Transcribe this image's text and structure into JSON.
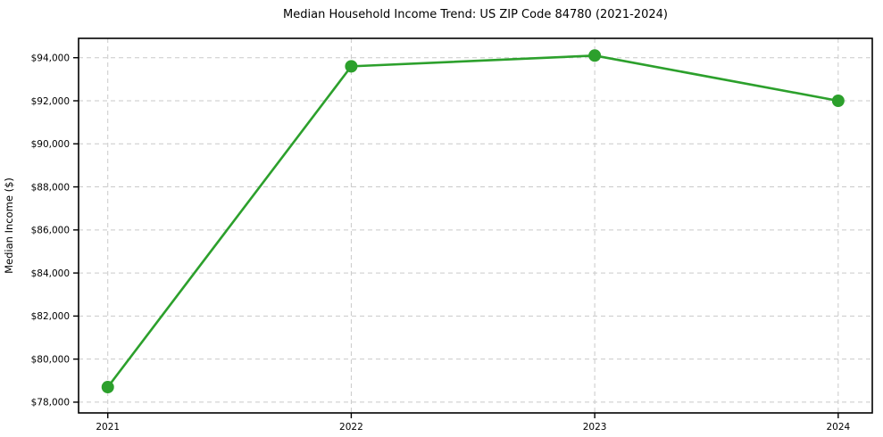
{
  "chart_data": {
    "type": "line",
    "title": "Median Household Income Trend: US ZIP Code 84780 (2021-2024)",
    "xlabel": "",
    "ylabel": "Median Income ($)",
    "x": [
      2021,
      2022,
      2023,
      2024
    ],
    "y": [
      78700,
      93600,
      94100,
      92000
    ],
    "xticks": [
      2021,
      2022,
      2023,
      2024
    ],
    "xtick_labels": [
      "2021",
      "2022",
      "2023",
      "2024"
    ],
    "yticks": [
      78000,
      80000,
      82000,
      84000,
      86000,
      88000,
      90000,
      92000,
      94000
    ],
    "ytick_labels": [
      "$78,000",
      "$80,000",
      "$82,000",
      "$84,000",
      "$86,000",
      "$88,000",
      "$90,000",
      "$92,000",
      "$94,000"
    ],
    "xlim": [
      2020.88,
      2024.14
    ],
    "ylim": [
      77500,
      94900
    ],
    "grid": true,
    "grid_style": "dashed",
    "legend": "none",
    "marker": "circle",
    "colors": {
      "line": "#2ca02c",
      "marker": "#2ca02c",
      "grid": "#c9c9c9",
      "spine": "#000000",
      "text": "#000000",
      "background": "#ffffff"
    }
  }
}
